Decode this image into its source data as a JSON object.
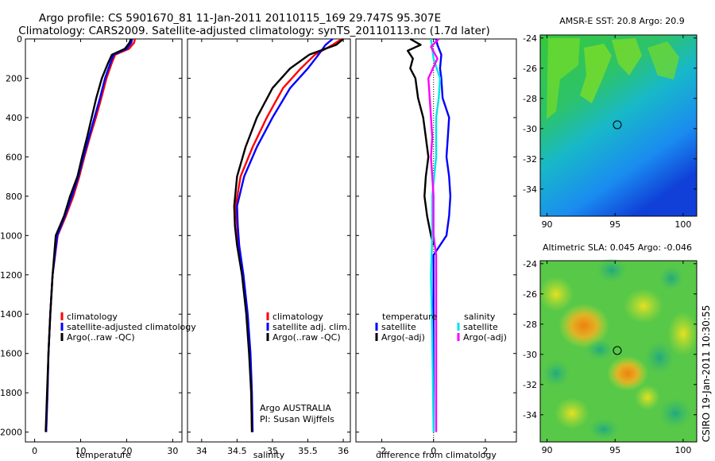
{
  "header": {
    "line1": "Argo profile: CS 5901670_81 11-Jan-2011 20110115_169 29.747S 95.307E",
    "line2": "Climatology: CARS2009. Satellite-adjusted climatology: synTS_20110113.nc (1.7d later)"
  },
  "side_label": "CSIRO 19-Jan-2011 10:30:55",
  "credit": {
    "line1": "Argo AUSTRALIA",
    "line2": "PI: Susan Wijffels"
  },
  "colors": {
    "climatology": "#ff0000",
    "satellite": "#0000ff",
    "argo": "#000000",
    "sal_sat": "#00e5e5",
    "sal_argo": "#ff00ff"
  },
  "chart_data": [
    {
      "type": "line",
      "name": "temperature",
      "xlabel": "temperature",
      "xlim": [
        -2,
        32
      ],
      "ylim": [
        2050,
        0
      ],
      "xticks": [
        0,
        10,
        20,
        30
      ],
      "yticks": [
        0,
        200,
        400,
        600,
        800,
        1000,
        1200,
        1400,
        1600,
        1800,
        2000
      ],
      "legend": [
        "climatology",
        "satellite-adjusted climatology",
        "Argo(..raw -QC)"
      ],
      "depth": [
        0,
        20,
        50,
        80,
        120,
        200,
        300,
        400,
        500,
        600,
        700,
        800,
        900,
        1000,
        1200,
        1400,
        1600,
        1800,
        2000
      ],
      "series": [
        {
          "name": "climatology",
          "color": "#ff0000",
          "values": [
            21.8,
            21.6,
            20.5,
            17.5,
            16.8,
            15.6,
            14.5,
            13.3,
            12.0,
            10.8,
            9.7,
            8.4,
            6.8,
            5.0,
            3.9,
            3.4,
            3.0,
            2.8,
            2.5
          ]
        },
        {
          "name": "satellite-adjusted climatology",
          "color": "#0000ff",
          "values": [
            21.2,
            21.0,
            20.0,
            17.2,
            16.5,
            15.3,
            14.2,
            13.0,
            11.8,
            10.6,
            9.5,
            8.1,
            6.6,
            4.9,
            3.9,
            3.4,
            3.0,
            2.8,
            2.5
          ]
        },
        {
          "name": "Argo(..raw -QC)",
          "color": "#000000",
          "values": [
            20.9,
            20.6,
            19.6,
            16.8,
            16.0,
            14.6,
            13.4,
            12.4,
            11.4,
            10.3,
            9.3,
            7.7,
            6.4,
            4.6,
            3.9,
            3.4,
            3.0,
            2.7,
            2.4
          ]
        }
      ]
    },
    {
      "type": "line",
      "name": "salinity",
      "xlabel": "salinity",
      "xlim": [
        33.8,
        36.1
      ],
      "ylim": [
        2050,
        0
      ],
      "xticks": [
        34,
        34.5,
        35,
        35.5,
        36
      ],
      "legend": [
        "climatology",
        "satellite adj. clim.",
        "Argo(..raw -QC)"
      ],
      "depth": [
        0,
        30,
        80,
        150,
        250,
        400,
        550,
        700,
        850,
        950,
        1050,
        1200,
        1400,
        1600,
        1800,
        2000
      ],
      "series": [
        {
          "name": "climatology",
          "color": "#ff0000",
          "values": [
            35.98,
            35.85,
            35.6,
            35.4,
            35.15,
            34.92,
            34.72,
            34.55,
            34.48,
            34.5,
            34.52,
            34.58,
            34.64,
            34.68,
            34.7,
            34.71
          ]
        },
        {
          "name": "satellite adj. clim.",
          "color": "#0000ff",
          "values": [
            35.85,
            35.75,
            35.65,
            35.5,
            35.25,
            35.0,
            34.78,
            34.6,
            34.5,
            34.51,
            34.53,
            34.59,
            34.65,
            34.69,
            34.71,
            34.72
          ]
        },
        {
          "name": "Argo(..raw -QC)",
          "color": "#000000",
          "values": [
            36.0,
            35.9,
            35.52,
            35.25,
            35.0,
            34.78,
            34.62,
            34.5,
            34.46,
            34.47,
            34.5,
            34.57,
            34.63,
            34.67,
            34.7,
            34.71
          ]
        }
      ]
    },
    {
      "type": "line",
      "name": "difference",
      "xlabel": "difference from climatology",
      "xlim": [
        -3,
        3.2
      ],
      "ylim": [
        2050,
        0
      ],
      "xticks": [
        -2,
        0,
        2
      ],
      "legend_groups": [
        {
          "title": "temperature",
          "items": [
            "satellite",
            "Argo(-adj)"
          ]
        },
        {
          "title": "salinity",
          "items": [
            "satellite",
            "Argo(-adj)"
          ]
        }
      ],
      "series": [
        {
          "name": "temperature satellite",
          "color": "#0000ff",
          "depth": [
            0,
            30,
            80,
            150,
            200,
            300,
            400,
            500,
            600,
            700,
            800,
            900,
            1000,
            1100,
            2000
          ],
          "values": [
            0.1,
            0.15,
            0.3,
            0.25,
            0.3,
            0.35,
            0.6,
            0.55,
            0.5,
            0.6,
            0.65,
            0.6,
            0.5,
            0.0,
            0.0
          ]
        },
        {
          "name": "temperature Argo(-adj)",
          "color": "#000000",
          "depth": [
            0,
            30,
            60,
            100,
            150,
            200,
            300,
            400,
            500,
            600,
            700,
            800,
            900,
            1000,
            1050
          ],
          "values": [
            -0.9,
            -0.5,
            -1.0,
            -0.8,
            -0.9,
            -0.7,
            -0.6,
            -0.4,
            -0.3,
            -0.2,
            -0.3,
            -0.35,
            -0.25,
            -0.1,
            0.0
          ]
        },
        {
          "name": "salinity satellite",
          "color": "#00e5e5",
          "depth": [
            0,
            50,
            100,
            200,
            300,
            400,
            600,
            800,
            1000,
            1200,
            1500,
            2000
          ],
          "values": [
            -0.1,
            -0.05,
            0.0,
            0.25,
            0.2,
            0.1,
            0.1,
            -0.05,
            -0.05,
            -0.1,
            -0.05,
            0.0
          ]
        },
        {
          "name": "salinity Argo(-adj)",
          "color": "#ff00ff",
          "depth": [
            0,
            40,
            100,
            200,
            300,
            400,
            500,
            600,
            700,
            800,
            1000,
            1100,
            1200,
            1500,
            2000
          ],
          "values": [
            0.2,
            -0.1,
            0.15,
            -0.2,
            -0.15,
            -0.1,
            -0.05,
            -0.1,
            -0.05,
            0.0,
            0.0,
            0.1,
            0.1,
            0.1,
            0.1
          ]
        }
      ]
    },
    {
      "type": "heatmap",
      "name": "sst_map",
      "title": "AMSR-E SST: 20.8 Argo: 20.9",
      "xlim": [
        89.5,
        101
      ],
      "ylim": [
        -35.8,
        -23.8
      ],
      "xticks": [
        90,
        95,
        100
      ],
      "yticks": [
        -24,
        -26,
        -28,
        -30,
        -32,
        -34
      ],
      "marker": {
        "lon": 95.307,
        "lat": -29.747
      }
    },
    {
      "type": "heatmap",
      "name": "sla_map",
      "title": "Altimetric SLA: 0.045 Argo: -0.046",
      "xlim": [
        89.5,
        101
      ],
      "ylim": [
        -35.8,
        -23.8
      ],
      "xticks": [
        90,
        95,
        100
      ],
      "yticks": [
        -24,
        -26,
        -28,
        -30,
        -32,
        -34
      ],
      "marker": {
        "lon": 95.307,
        "lat": -29.747
      }
    }
  ]
}
